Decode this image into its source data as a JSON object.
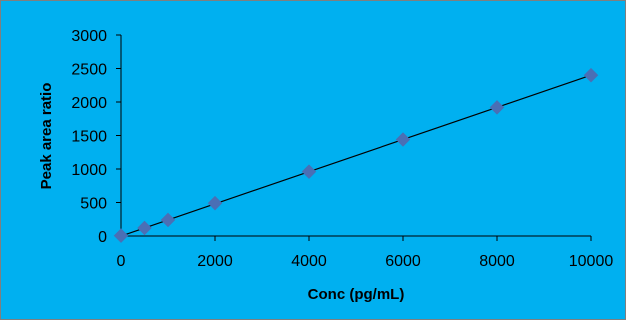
{
  "chart_data": {
    "type": "scatter",
    "xlabel": "Conc (pg/mL)",
    "ylabel": "Peak area ratio",
    "xlim": [
      0,
      10000
    ],
    "ylim": [
      0,
      3000
    ],
    "xticks": [
      "0",
      "2000",
      "4000",
      "6000",
      "8000",
      "10000"
    ],
    "yticks": [
      "0",
      "500",
      "1000",
      "1500",
      "2000",
      "2500",
      "3000"
    ],
    "grid": false,
    "legend": "none",
    "series": [
      {
        "x": [
          0,
          500,
          1000,
          2000,
          4000,
          6000,
          8000,
          10000
        ],
        "y": [
          5,
          120,
          240,
          490,
          960,
          1440,
          1920,
          2400
        ],
        "marker": "diamond",
        "color": "#4a6fb5"
      }
    ],
    "trendline": {
      "type": "linear",
      "x": [
        0,
        10000
      ],
      "y": [
        0,
        2400
      ],
      "color": "#000000"
    },
    "background_color": "#00b0f0"
  }
}
